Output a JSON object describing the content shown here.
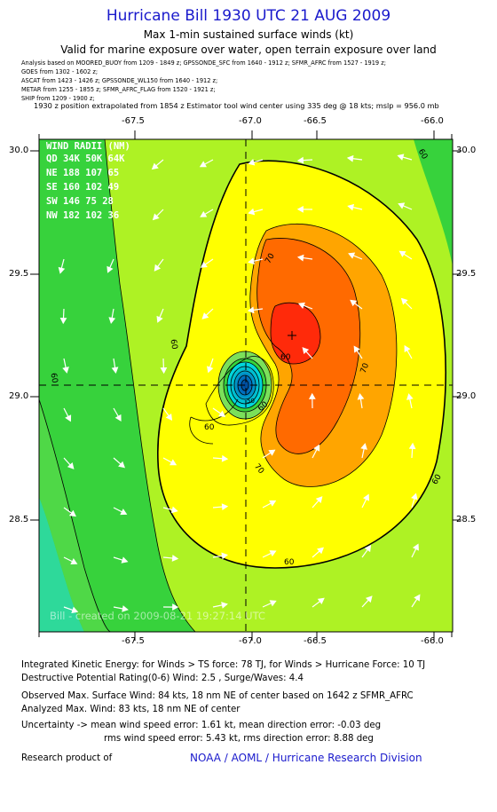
{
  "header": {
    "title": "Hurricane Bill 1930 UTC 21 AUG 2009",
    "subtitle1": "Max 1-min sustained surface winds (kt)",
    "subtitle2": "Valid for marine exposure over water, open terrain exposure over land",
    "sources": [
      "Analysis based on   MOORED_BUOY from 1209 - 1849 z;  GPSSONDE_SFC from 1640 - 1912 z;  SFMR_AFRC from 1527 - 1919 z;",
      "GOES from 1302 - 1602 z;",
      "ASCAT from 1423 - 1426 z;  GPSSONDE_WL150 from 1640 - 1912 z;",
      "METAR from 1255 - 1855 z;  SFMR_AFRC_FLAG from 1520 - 1921 z;",
      "SHIP from 1209 - 1900 z;"
    ],
    "extrapolation": "1930 z position extrapolated from 1854 z Estimator tool wind center using 335 deg @ 18 kts;  mslp = 956.0 mb"
  },
  "map": {
    "lon_ticks": [
      "-67.5",
      "-67.0",
      "-66.5",
      "-66.0"
    ],
    "lat_ticks": [
      "30.0",
      "29.5",
      "29.0",
      "28.5"
    ],
    "center": {
      "lon": -66.97,
      "lat": 29.05
    },
    "max_wind_marker": {
      "lon": -66.72,
      "lat": 29.25
    },
    "contour_labels": [
      "60",
      "60",
      "60",
      "60",
      "60",
      "60",
      "60",
      "70",
      "70",
      "70",
      "60",
      "50"
    ],
    "watermark": "Bill  -  created on 2009-08-21 19:27:14 UTC",
    "colors": {
      "green": "#37d23c",
      "teal": "#2ed99a",
      "yellowgreen": "#aef224",
      "yellow": "#ffff00",
      "orange": "#ffa500",
      "dark_orange": "#ff6a00",
      "red": "#ff2a0a",
      "eye_cyan": "#00e0e0",
      "eye_blue": "#0070c0"
    }
  },
  "wind_radii": {
    "header": "WIND RADII (NM)",
    "columns": "QD  34K  50K  64K",
    "rows": [
      "NE  188  107   65",
      "SE  160  102   49",
      "SW  146   75   28",
      "NW  182  102   36"
    ]
  },
  "footer": {
    "ike": "Integrated Kinetic Energy:  for Winds > TS force: 78 TJ,  for Winds > Hurricane Force: 10 TJ",
    "dpr": "Destructive Potential Rating(0-6)   Wind: 2.5 , Surge/Waves: 4.4",
    "obs_max": "Observed Max. Surface Wind: 84 kts, 18 nm NE of center based on 1642 z SFMR_AFRC",
    "analyzed_max": "Analyzed Max. Wind: 83 kts, 18 nm NE of center",
    "uncert1": "Uncertainty -> mean wind speed error: 1.61 kt,   mean direction error:  -0.03 deg",
    "uncert2": "rms wind speed error: 5.43 kt,   rms direction error: 8.88 deg",
    "research": "Research product of",
    "org": "NOAA / AOML / Hurricane Research Division"
  }
}
